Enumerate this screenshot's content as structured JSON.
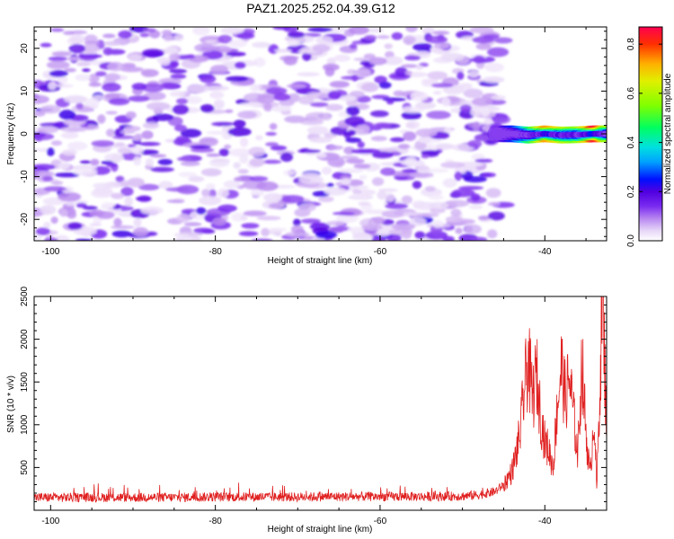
{
  "title": "PAZ1.2025.252.04.39.G12",
  "chart_data": [
    {
      "type": "heatmap",
      "title": "PAZ1.2025.252.04.39.G12",
      "xlabel": "Height of straight line (km)",
      "ylabel": "Frequency (Hz)",
      "xlim": [
        -102,
        -32.5
      ],
      "ylim": [
        -25,
        25
      ],
      "x_ticks": [
        -100,
        -80,
        -60,
        -40
      ],
      "y_ticks": [
        -20,
        -10,
        0,
        10,
        20
      ],
      "colorbar": {
        "label": "Normalized spectral amplitude",
        "range": [
          0.0,
          0.87
        ],
        "ticks": [
          0.0,
          0.2,
          0.4,
          0.6,
          0.8
        ],
        "colormap": "rainbow",
        "colors": [
          "#ffffff",
          "#e8d8f8",
          "#b888f0",
          "#7a2cf0",
          "#5000e0",
          "#0010ff",
          "#00a0ff",
          "#00e0e0",
          "#00ff60",
          "#80ff00",
          "#e0f000",
          "#ffb000",
          "#ff3000",
          "#ff0050"
        ]
      },
      "noise_region": {
        "x": [
          -102,
          -46
        ],
        "y": [
          -25,
          25
        ],
        "amplitude_typical": 0.1
      },
      "signal_track": {
        "x": [
          -46,
          -44,
          -42,
          -40,
          -38,
          -36,
          -34,
          -32.5
        ],
        "y": [
          0,
          0,
          -0.3,
          0,
          -0.3,
          -0.2,
          0,
          0
        ],
        "amplitude": [
          0.12,
          0.25,
          0.45,
          0.75,
          0.6,
          0.55,
          0.87,
          0.5
        ]
      }
    },
    {
      "type": "line",
      "xlabel": "Height of straight line (km)",
      "ylabel": "SNR (10 * v/v)",
      "xlim": [
        -102,
        -32.5
      ],
      "ylim": [
        0,
        2500
      ],
      "x_ticks": [
        -100,
        -80,
        -60,
        -40
      ],
      "y_ticks": [
        500,
        1000,
        1500,
        2000,
        2500
      ],
      "series": [
        {
          "name": "SNR",
          "color": "#e02020",
          "x": [
            -102,
            -95,
            -90,
            -85,
            -80,
            -75,
            -70,
            -65,
            -60,
            -55,
            -50,
            -48,
            -46,
            -45,
            -44,
            -43.5,
            -43,
            -42.5,
            -42,
            -41.5,
            -41,
            -40.5,
            -40,
            -39.5,
            -39,
            -38.5,
            -38,
            -37.5,
            -37,
            -36.5,
            -36,
            -35.5,
            -35,
            -34.5,
            -34,
            -33.7,
            -33.3,
            -33,
            -32.7,
            -32.5
          ],
          "values": [
            150,
            150,
            150,
            150,
            155,
            155,
            155,
            160,
            160,
            160,
            165,
            180,
            220,
            300,
            450,
            650,
            900,
            1400,
            1750,
            1300,
            1600,
            1100,
            800,
            700,
            500,
            1200,
            1700,
            1300,
            1550,
            1100,
            650,
            1750,
            900,
            400,
            1150,
            250,
            1500,
            2600,
            1600,
            1000
          ]
        }
      ]
    }
  ]
}
